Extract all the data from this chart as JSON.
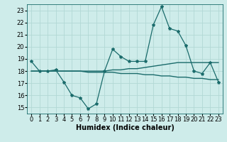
{
  "xlabel": "Humidex (Indice chaleur)",
  "background_color": "#ceecea",
  "grid_color": "#b2d8d5",
  "line_color": "#1a6b6b",
  "x": [
    0,
    1,
    2,
    3,
    4,
    5,
    6,
    7,
    8,
    9,
    10,
    11,
    12,
    13,
    14,
    15,
    16,
    17,
    18,
    19,
    20,
    21,
    22,
    23
  ],
  "line1": [
    18.8,
    18.0,
    18.0,
    18.1,
    17.1,
    16.0,
    15.8,
    14.9,
    15.3,
    18.0,
    19.8,
    19.2,
    18.8,
    18.8,
    18.8,
    21.8,
    23.3,
    21.5,
    21.3,
    20.1,
    18.0,
    17.8,
    18.7,
    17.1
  ],
  "line2": [
    18.0,
    18.0,
    18.0,
    18.0,
    18.0,
    18.0,
    18.0,
    18.0,
    18.0,
    18.0,
    18.1,
    18.1,
    18.2,
    18.2,
    18.3,
    18.4,
    18.5,
    18.6,
    18.7,
    18.7,
    18.7,
    18.7,
    18.7,
    18.7
  ],
  "line3": [
    18.0,
    18.0,
    18.0,
    18.0,
    18.0,
    18.0,
    18.0,
    17.9,
    17.9,
    17.9,
    17.9,
    17.8,
    17.8,
    17.8,
    17.7,
    17.7,
    17.6,
    17.6,
    17.5,
    17.5,
    17.4,
    17.4,
    17.3,
    17.3
  ],
  "ylim": [
    14.5,
    23.5
  ],
  "xlim": [
    -0.5,
    23.5
  ],
  "yticks": [
    15,
    16,
    17,
    18,
    19,
    20,
    21,
    22,
    23
  ],
  "xticks": [
    0,
    1,
    2,
    3,
    4,
    5,
    6,
    7,
    8,
    9,
    10,
    11,
    12,
    13,
    14,
    15,
    16,
    17,
    18,
    19,
    20,
    21,
    22,
    23
  ],
  "label_fontsize": 7,
  "tick_fontsize": 6
}
